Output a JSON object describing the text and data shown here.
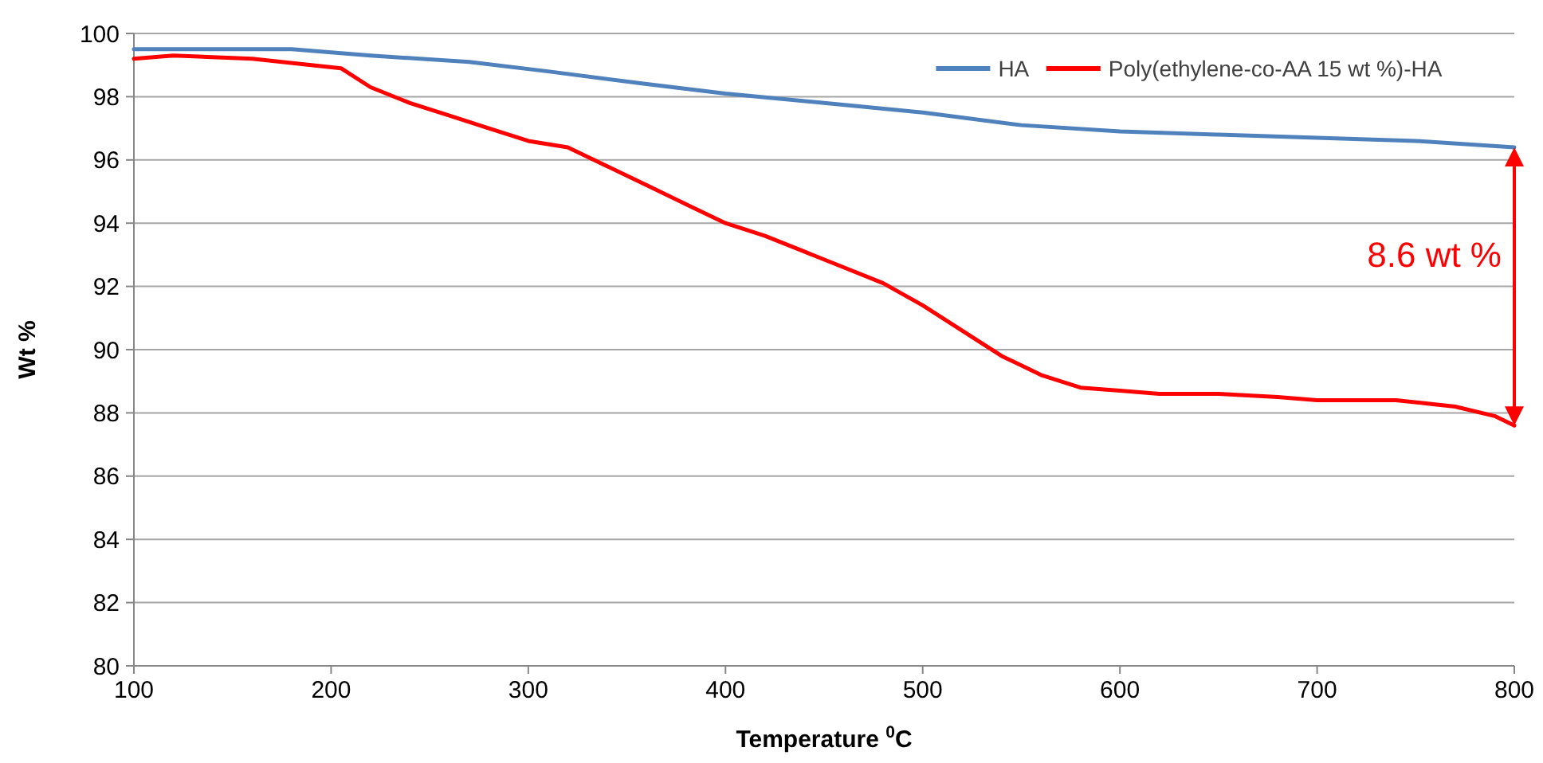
{
  "chart_data": {
    "type": "line",
    "xlabel": "Temperature $^{0}$C",
    "ylabel": "Wt %",
    "xlim": [
      100,
      800
    ],
    "xticks": [
      100,
      200,
      300,
      400,
      500,
      600,
      700,
      800
    ],
    "ylim": [
      80,
      100
    ],
    "yticks": [
      80,
      82,
      84,
      86,
      88,
      90,
      92,
      94,
      96,
      98,
      100
    ],
    "grid": "y",
    "legend": "top right",
    "marker": "none",
    "line_style": "solid",
    "series": [
      {
        "name": "HA",
        "color": "#4f81bd",
        "x": [
          100,
          140,
          180,
          220,
          270,
          310,
          360,
          400,
          450,
          500,
          550,
          600,
          650,
          700,
          750,
          800
        ],
        "values": [
          99.5,
          99.5,
          99.5,
          99.3,
          99.1,
          98.8,
          98.4,
          98.1,
          97.8,
          97.5,
          97.1,
          96.9,
          96.8,
          96.7,
          96.6,
          96.4
        ]
      },
      {
        "name": "Poly(ethylene-co-AA 15 wt %)-HA",
        "color": "#ff0000",
        "x": [
          100,
          120,
          160,
          190,
          205,
          220,
          240,
          260,
          280,
          300,
          320,
          340,
          360,
          380,
          400,
          420,
          440,
          460,
          480,
          500,
          520,
          540,
          560,
          580,
          600,
          620,
          650,
          680,
          700,
          740,
          770,
          790,
          800
        ],
        "values": [
          99.2,
          99.3,
          99.2,
          99.0,
          98.9,
          98.3,
          97.8,
          97.4,
          97.0,
          96.6,
          96.4,
          95.8,
          95.2,
          94.6,
          94.0,
          93.6,
          93.1,
          92.6,
          92.1,
          91.4,
          90.6,
          89.8,
          89.2,
          88.8,
          88.7,
          88.6,
          88.6,
          88.5,
          88.4,
          88.4,
          88.2,
          87.9,
          87.6
        ]
      }
    ],
    "annotations": [
      "8.6 wt %"
    ]
  }
}
